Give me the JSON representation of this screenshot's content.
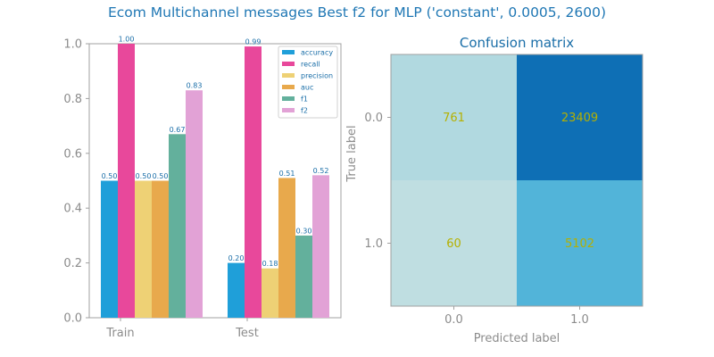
{
  "title": "Ecom Multichannel messages Best f2 for MLP ('constant', 0.0005, 2600)",
  "chart_data": [
    {
      "type": "bar",
      "categories": [
        "Train",
        "Test"
      ],
      "series": [
        {
          "name": "accuracy",
          "color": "#1f9fd9",
          "values": [
            0.5,
            0.2
          ],
          "labels": [
            "0.50",
            "0.20"
          ]
        },
        {
          "name": "recall",
          "color": "#e8489b",
          "values": [
            1.0,
            0.99
          ],
          "labels": [
            "1.00",
            "0.99"
          ]
        },
        {
          "name": "precision",
          "color": "#eed175",
          "values": [
            0.5,
            0.18
          ],
          "labels": [
            "0.50",
            "0.18"
          ]
        },
        {
          "name": "auc",
          "color": "#e8a94c",
          "values": [
            0.5,
            0.51
          ],
          "labels": [
            "0.50",
            "0.51"
          ]
        },
        {
          "name": "f1",
          "color": "#63b09c",
          "values": [
            0.67,
            0.3
          ],
          "labels": [
            "0.67",
            "0.30"
          ]
        },
        {
          "name": "f2",
          "color": "#e2a2d6",
          "values": [
            0.83,
            0.52
          ],
          "labels": [
            "0.83",
            "0.52"
          ]
        }
      ],
      "ylim": [
        0,
        1.0
      ],
      "yticks": [
        "0.0",
        "0.2",
        "0.4",
        "0.6",
        "0.8",
        "1.0"
      ],
      "legend_position": "top-right",
      "grid": false
    },
    {
      "type": "heatmap",
      "title": "Confusion matrix",
      "xlabel": "Predicted label",
      "ylabel": "True label",
      "x_ticks": [
        "0.0",
        "1.0"
      ],
      "y_ticks": [
        "0.0",
        "1.0"
      ],
      "values": [
        [
          761,
          23409
        ],
        [
          60,
          5102
        ]
      ],
      "cell_colors": [
        [
          "#b1d9e0",
          "#0e6fb5"
        ],
        [
          "#bfdee1",
          "#52b4d9"
        ]
      ]
    }
  ]
}
